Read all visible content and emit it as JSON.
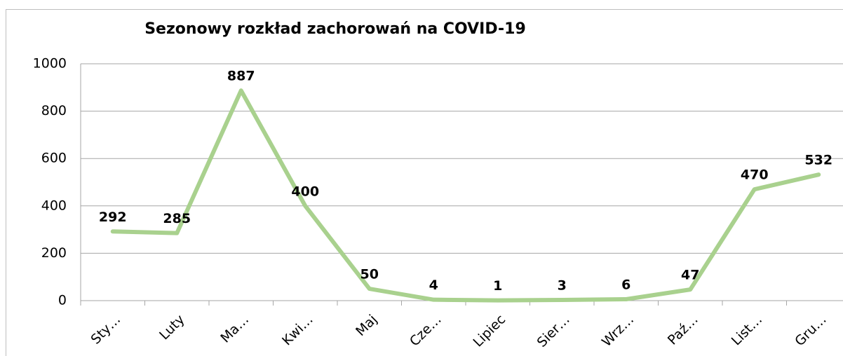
{
  "chart_data": {
    "type": "line",
    "title": "Sezonowy rozkład zachorowań na COVID-19",
    "categories": [
      "Sty…",
      "Luty",
      "Ma…",
      "Kwi…",
      "Maj",
      "Cze…",
      "Lipiec",
      "Sier…",
      "Wrz…",
      "Paź…",
      "List…",
      "Gru…"
    ],
    "values": [
      292,
      285,
      887,
      400,
      50,
      4,
      1,
      3,
      6,
      47,
      470,
      532
    ],
    "color": "#a9d18e",
    "ylim": [
      0,
      1000
    ],
    "yticks": [
      0,
      200,
      400,
      600,
      800,
      1000
    ],
    "grid": true
  }
}
